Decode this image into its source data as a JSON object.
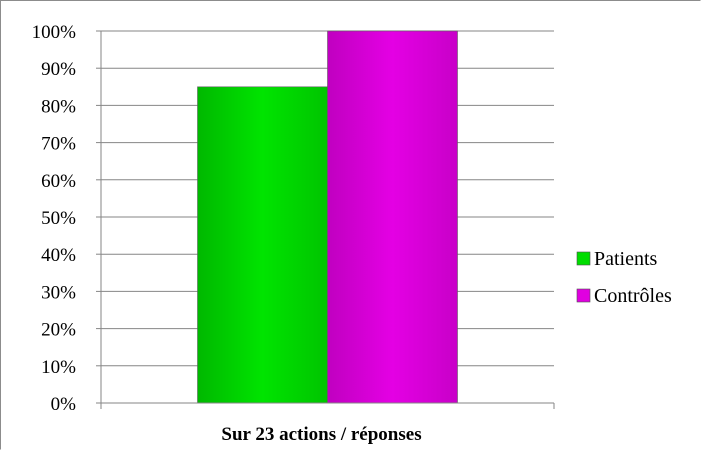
{
  "chart_data": {
    "type": "bar",
    "categories": [
      "Sur 23 actions / réponses"
    ],
    "xlabel": "Sur 23 actions / réponses",
    "ylabel": "",
    "ylim": [
      0,
      1
    ],
    "yticks": [
      "0%",
      "10%",
      "20%",
      "30%",
      "40%",
      "50%",
      "60%",
      "70%",
      "80%",
      "90%",
      "100%"
    ],
    "series": [
      {
        "name": "Patients",
        "values": [
          0.85
        ],
        "color": "#00dd00"
      },
      {
        "name": "Contrôles",
        "values": [
          1.0
        ],
        "color": "#e000e0"
      }
    ],
    "legend": "right",
    "grid": true
  }
}
